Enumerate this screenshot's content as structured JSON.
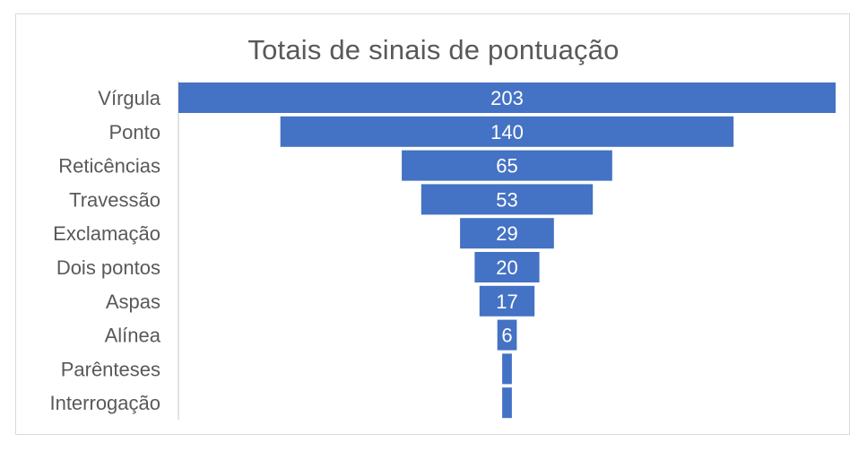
{
  "chart_data": {
    "type": "bar",
    "variant": "funnel",
    "title": "Totais de sinais de pontuação",
    "categories": [
      "Vírgula",
      "Ponto",
      "Reticências",
      "Travessão",
      "Exclamação",
      "Dois pontos",
      "Aspas",
      "Alínea",
      "Parênteses",
      "Interrogação"
    ],
    "values": [
      203,
      140,
      65,
      53,
      29,
      20,
      17,
      6,
      3,
      3
    ],
    "data_labels_shown": [
      true,
      true,
      true,
      true,
      true,
      true,
      true,
      true,
      false,
      false
    ],
    "xlabel": "",
    "ylabel": "",
    "grid": false,
    "legend": "none",
    "colors": {
      "bar": "#4472c4",
      "label_text": "#595959",
      "data_label": "#ffffff",
      "border": "#d9d9d9"
    }
  }
}
